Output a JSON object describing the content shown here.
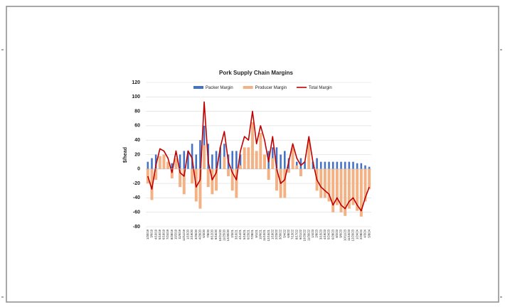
{
  "chart_data": {
    "type": "bar_line",
    "title": "Pork Supply Chain Margins",
    "y_label": "$/head",
    "categories": [
      "1/30/19",
      "3/6/19",
      "4/10/19",
      "5/15/19",
      "6/19/19",
      "7/24/19",
      "8/28/19",
      "10/2/19",
      "11/6/19",
      "12/11/19",
      "1/15/20",
      "2/19/20",
      "3/25/20",
      "4/29/20",
      "6/3/20",
      "7/8/20",
      "8/12/20",
      "9/16/20",
      "10/21/20",
      "11/25/20",
      "12/30/20",
      "2/3/21",
      "3/10/21",
      "4/14/21",
      "5/19/21",
      "6/23/21",
      "7/28/21",
      "9/1/21",
      "10/6/21",
      "11/10/21",
      "12/15/21",
      "1/19/22",
      "2/23/22",
      "3/30/22",
      "5/4/22",
      "6/8/22",
      "7/13/22",
      "8/17/22",
      "9/21/22",
      "10/26/22",
      "11/30/22",
      "1/4/23",
      "2/8/23",
      "3/15/23",
      "4/19/23",
      "5/24/23",
      "6/28/23",
      "8/2/23",
      "9/6/23",
      "10/11/23",
      "11/15/23",
      "12/20/23",
      "1/24/24",
      "2/28/24",
      "4/3/24",
      "5/8/24"
    ],
    "series": [
      {
        "name": "Packer Margin",
        "color": "#4472c4",
        "kind": "bar",
        "values": [
          10,
          15,
          20,
          10,
          5,
          5,
          8,
          10,
          20,
          25,
          25,
          35,
          20,
          40,
          60,
          35,
          20,
          25,
          30,
          35,
          20,
          25,
          25,
          20,
          15,
          10,
          15,
          10,
          10,
          20,
          25,
          30,
          30,
          20,
          25,
          15,
          5,
          10,
          15,
          10,
          5,
          10,
          15,
          10,
          10,
          10,
          10,
          10,
          10,
          10,
          10,
          10,
          8,
          8,
          5,
          3
        ]
      },
      {
        "name": "Producer Margin",
        "color": "#f4b183",
        "kind": "bar",
        "values": [
          -20,
          -43,
          -15,
          18,
          20,
          10,
          -13,
          15,
          -25,
          -35,
          0,
          -20,
          -45,
          -55,
          33,
          -25,
          -35,
          -30,
          0,
          17,
          -10,
          -30,
          -40,
          5,
          30,
          30,
          65,
          25,
          50,
          20,
          -15,
          15,
          -30,
          -40,
          -40,
          -5,
          30,
          5,
          -10,
          0,
          40,
          0,
          -30,
          -40,
          -40,
          -45,
          -60,
          -50,
          -60,
          -65,
          -55,
          -50,
          -58,
          -66,
          -45,
          -28
        ]
      },
      {
        "name": "Total Margin",
        "color": "#c00000",
        "kind": "line",
        "values": [
          -10,
          -28,
          5,
          28,
          25,
          15,
          -5,
          25,
          -5,
          -10,
          25,
          15,
          -25,
          -15,
          93,
          10,
          -15,
          -5,
          30,
          52,
          10,
          -5,
          -15,
          25,
          45,
          40,
          80,
          35,
          60,
          40,
          10,
          45,
          0,
          -20,
          -15,
          10,
          35,
          15,
          5,
          10,
          45,
          10,
          -15,
          -25,
          -30,
          -35,
          -50,
          -40,
          -50,
          -55,
          -45,
          -40,
          -50,
          -58,
          -40,
          -25
        ]
      }
    ],
    "ylim": [
      -80,
      120
    ],
    "yticks": [
      -80,
      -60,
      -40,
      -20,
      0,
      20,
      40,
      60,
      80,
      100,
      120
    ],
    "grid": true
  }
}
